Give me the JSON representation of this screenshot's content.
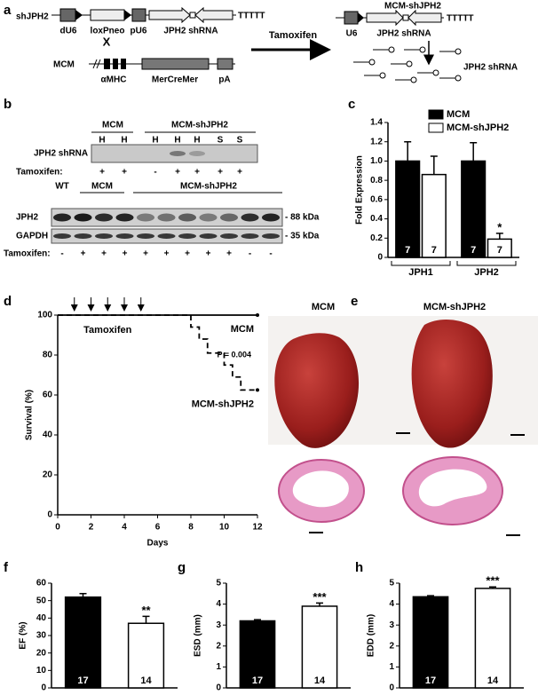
{
  "panel_labels": [
    "a",
    "b",
    "c",
    "d",
    "e",
    "f",
    "g",
    "h"
  ],
  "diagram": {
    "shjph2": {
      "label": "shJPH2",
      "elements": [
        "dU6",
        "loxPneo",
        "pU6",
        "JPH2 shRNA"
      ],
      "terminator": "TTTTT"
    },
    "cross": "X",
    "mcm": {
      "label": "MCM",
      "elements": [
        "αMHC",
        "MerCreMer",
        "pA"
      ]
    },
    "treatment": "Tamoxifen",
    "result": {
      "label": "MCM-shJPH2",
      "elements": [
        "U6",
        "JPH2 shRNA"
      ],
      "terminator": "TTTTT",
      "product": "JPH2 shRNA"
    }
  },
  "blot": {
    "top": {
      "groups": [
        "MCM",
        "MCM-shJPH2"
      ],
      "lanes": [
        "H",
        "H",
        "H",
        "H",
        "H",
        "S",
        "S"
      ],
      "row": "JPH2 shRNA",
      "treatment_label": "Tamoxifen:",
      "treatment": [
        "+",
        "+",
        "-",
        "+",
        "+",
        "+",
        "+"
      ]
    },
    "bottom": {
      "groups": [
        "WT",
        "MCM",
        "MCM-shJPH2"
      ],
      "rows": [
        "JPH2",
        "GAPDH"
      ],
      "markers": [
        "- 88 kDa",
        "- 35 kDa"
      ],
      "treatment_label": "Tamoxifen:",
      "treatment": [
        "-",
        "+",
        "+",
        "+",
        "+",
        "+",
        "+",
        "+",
        "+",
        "-",
        "-"
      ]
    }
  },
  "images": {
    "titles": [
      "MCM",
      "MCM-shJPH2"
    ]
  },
  "chart_data": [
    {
      "type": "bar",
      "ylabel": "Fold Expression",
      "categories": [
        "JPH1",
        "JPH2"
      ],
      "series": [
        {
          "name": "MCM",
          "color": "#000000",
          "values": [
            1.0,
            1.0
          ],
          "errors": [
            0.2,
            0.19
          ],
          "n": [
            7,
            7
          ]
        },
        {
          "name": "MCM-shJPH2",
          "color": "#ffffff",
          "values": [
            0.86,
            0.19
          ],
          "errors": [
            0.19,
            0.06
          ],
          "n": [
            7,
            7
          ]
        }
      ],
      "ylim": [
        0,
        1.4
      ],
      "yticks": [
        0,
        0.2,
        0.4,
        0.6,
        0.8,
        {
          "value": 1,
          "label": "1.0"
        },
        1.2,
        1.4
      ],
      "annotation": "*"
    },
    {
      "type": "line",
      "xlabel": "Days",
      "ylabel": "Survival (%)",
      "xlim": [
        0,
        12
      ],
      "xticks": [
        0,
        2,
        4,
        6,
        8,
        10,
        12
      ],
      "ylim": [
        0,
        100
      ],
      "yticks": [
        0,
        20,
        40,
        60,
        80,
        100
      ],
      "series": [
        {
          "name": "MCM",
          "color": "#000000",
          "dashed": false,
          "x": [
            0,
            12
          ],
          "values": [
            100,
            100
          ]
        },
        {
          "name": "MCM-shJPH2",
          "color": "#000000",
          "dashed": true,
          "x": [
            0,
            8,
            8,
            8.5,
            8.5,
            9,
            9,
            10,
            10,
            10.5,
            10.5,
            11,
            11,
            12
          ],
          "values": [
            100,
            100,
            94,
            94,
            88,
            88,
            81,
            81,
            75,
            75,
            69,
            69,
            62.5,
            62.5
          ]
        }
      ],
      "annotation": "P = 0.004",
      "treatment": {
        "label": "Tamoxifen",
        "days": [
          1,
          2,
          3,
          4,
          5
        ]
      }
    },
    {
      "type": "bar",
      "ylabel": "EF (%)",
      "categories": [
        null,
        null
      ],
      "values": [
        52,
        37
      ],
      "errors": [
        2,
        4
      ],
      "colors": [
        "#000000",
        "#ffffff"
      ],
      "n": [
        17,
        14
      ],
      "ylim": [
        0,
        60
      ],
      "yticks": [
        0,
        10,
        20,
        30,
        40,
        50,
        60
      ],
      "annotation": "**"
    },
    {
      "type": "bar",
      "ylabel": "ESD (mm)",
      "categories": [
        null,
        null
      ],
      "values": [
        3.2,
        3.9
      ],
      "errors": [
        0.06,
        0.15
      ],
      "colors": [
        "#000000",
        "#ffffff"
      ],
      "n": [
        17,
        14
      ],
      "ylim": [
        0,
        5
      ],
      "yticks": [
        0,
        1,
        2,
        3,
        4,
        5
      ],
      "annotation": "***"
    },
    {
      "type": "bar",
      "ylabel": "EDD (mm)",
      "categories": [
        null,
        null
      ],
      "values": [
        4.35,
        4.75
      ],
      "errors": [
        0.05,
        0.07
      ],
      "colors": [
        "#000000",
        "#ffffff"
      ],
      "n": [
        17,
        14
      ],
      "ylim": [
        0,
        5
      ],
      "yticks": [
        0,
        1,
        2,
        3,
        4,
        5
      ],
      "annotation": "***"
    }
  ]
}
